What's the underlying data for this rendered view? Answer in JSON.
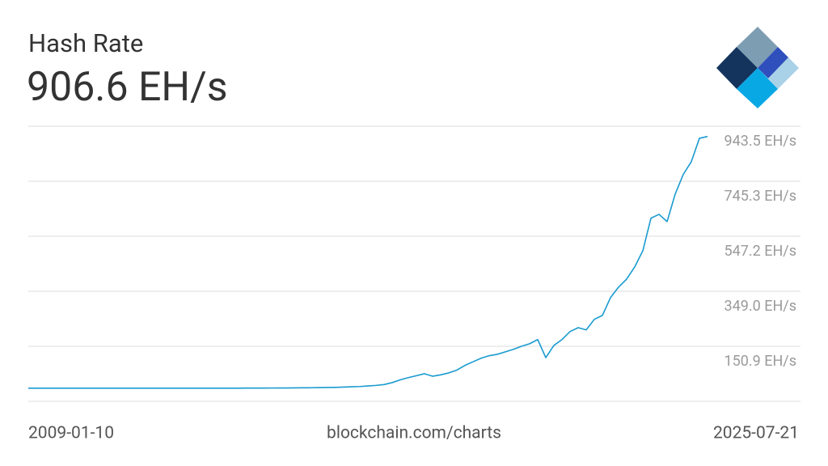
{
  "chart_data": {
    "type": "line",
    "title": "Hash Rate",
    "subtitle": "906.6 EH/s",
    "source": "blockchain.com/charts",
    "categories": [
      "2009-01-10",
      null,
      null,
      null,
      null,
      null,
      null,
      null,
      null,
      null,
      null,
      null,
      null,
      null,
      null,
      null,
      null,
      null,
      null,
      null,
      null,
      null,
      null,
      null,
      null,
      null,
      null,
      null,
      null,
      null,
      null,
      null,
      null,
      null,
      null,
      null,
      null,
      null,
      null,
      null,
      null,
      null,
      null,
      null,
      null,
      null,
      null,
      null,
      null,
      null,
      null,
      null,
      null,
      null,
      null,
      null,
      null,
      null,
      null,
      null,
      null,
      null,
      null,
      null,
      null,
      null,
      null,
      null,
      null,
      null,
      null,
      null,
      null,
      null,
      null,
      null,
      null,
      null,
      null,
      null,
      null,
      null,
      null,
      null,
      "2025-07-21"
    ],
    "series": [
      {
        "name": "Hash Rate",
        "color": "#1a9bd0",
        "values": [
          0,
          0,
          0,
          0,
          0,
          0,
          0,
          0,
          0,
          0,
          0,
          0,
          0,
          0,
          0,
          0,
          0,
          0,
          0,
          0,
          0,
          0,
          0,
          0,
          0,
          0.1,
          0.1,
          0.2,
          0.3,
          0.4,
          0.5,
          0.6,
          0.8,
          1.0,
          1.3,
          1.6,
          2.0,
          2.5,
          3,
          4,
          5,
          6,
          8,
          10,
          13,
          20,
          30,
          38,
          45,
          52,
          43,
          48,
          55,
          65,
          82,
          95,
          108,
          117,
          122,
          131,
          140,
          151,
          160,
          175,
          110,
          154,
          175,
          204,
          218,
          210,
          248,
          262,
          326,
          364,
          393,
          437,
          495,
          612,
          626,
          600,
          699,
          770,
          816,
          900,
          906.6
        ]
      }
    ],
    "ylim": [
      -47.2,
      943.5
    ],
    "yticks": [
      {
        "value": 150.9,
        "label": "150.9 EH/s"
      },
      {
        "value": 349.0,
        "label": "349.0 EH/s"
      },
      {
        "value": 547.2,
        "label": "547.2 EH/s"
      },
      {
        "value": 745.3,
        "label": "745.3 EH/s"
      },
      {
        "value": 943.5,
        "label": "943.5 EH/s"
      }
    ],
    "grid": true
  }
}
